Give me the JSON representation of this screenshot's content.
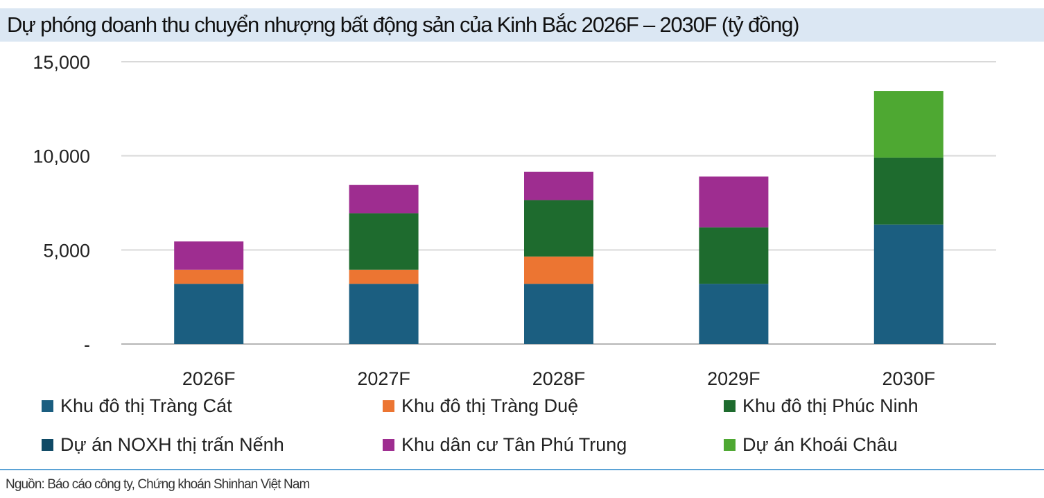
{
  "title": "Dự phóng doanh thu chuyển nhượng bất động sản của Kinh Bắc 2026F – 2030F (tỷ đồng)",
  "source": "Nguồn: Báo cáo công ty, Chứng khoán Shinhan Việt Nam",
  "chart_data": {
    "type": "bar",
    "stacked": true,
    "categories": [
      "2026F",
      "2027F",
      "2028F",
      "2029F",
      "2030F"
    ],
    "ylim": [
      0,
      15000
    ],
    "yticks": [
      0,
      5000,
      10000,
      15000
    ],
    "ytick_labels": [
      "-",
      "5,000",
      "10,000",
      "15,000"
    ],
    "grid": true,
    "legend_position": "bottom",
    "series": [
      {
        "name": "Khu đô thị Tràng Cát",
        "color": "#1b5e80",
        "values": [
          3200,
          3200,
          3200,
          3200,
          6350
        ]
      },
      {
        "name": "Khu đô thị Tràng Duệ",
        "color": "#ec7532",
        "values": [
          750,
          750,
          1450,
          0,
          0
        ]
      },
      {
        "name": "Khu đô thị Phúc Ninh",
        "color": "#1e6b2e",
        "values": [
          0,
          3000,
          3000,
          3000,
          3550
        ]
      },
      {
        "name": "Dự án NOXH thị trấn Nếnh",
        "color": "#0f4a66",
        "values": [
          0,
          0,
          0,
          0,
          0
        ]
      },
      {
        "name": "Khu dân cư Tân Phú Trung",
        "color": "#9e2d90",
        "values": [
          1500,
          1500,
          1500,
          2700,
          0
        ]
      },
      {
        "name": "Dự án Khoái Châu",
        "color": "#4ea832",
        "values": [
          0,
          0,
          0,
          0,
          3550
        ]
      }
    ]
  }
}
